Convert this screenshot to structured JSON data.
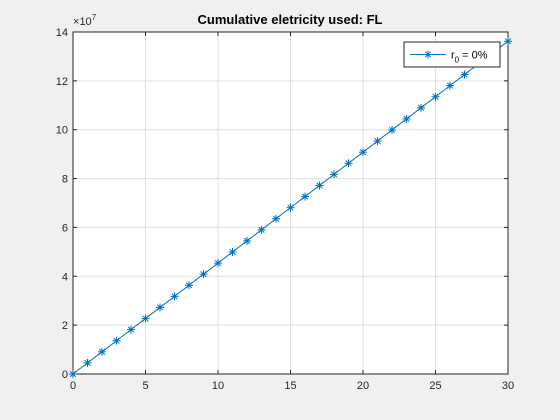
{
  "chart_data": {
    "type": "line",
    "title": "Cumulative eletricity used: FL",
    "xlabel": "",
    "ylabel": "",
    "xlim": [
      0,
      30
    ],
    "ylim": [
      0,
      140000000
    ],
    "x_ticks": [
      0,
      5,
      10,
      15,
      20,
      25,
      30
    ],
    "y_ticks": [
      0,
      20000000,
      40000000,
      60000000,
      80000000,
      100000000,
      120000000,
      140000000
    ],
    "x_tick_labels": [
      "0",
      "5",
      "10",
      "15",
      "20",
      "25",
      "30"
    ],
    "y_tick_labels": [
      "0",
      "2",
      "4",
      "6",
      "8",
      "10",
      "12",
      "14"
    ],
    "y_exponent": {
      "base": "10",
      "power": "7"
    },
    "grid": true,
    "legend_position": "top-right",
    "series": [
      {
        "legend": {
          "prefix": "r",
          "subscript": "0",
          "suffix": " = 0%"
        },
        "color": "#0072bd",
        "marker": "asterisk",
        "x": [
          0,
          1,
          2,
          3,
          4,
          5,
          6,
          7,
          8,
          9,
          10,
          11,
          12,
          13,
          14,
          15,
          16,
          17,
          18,
          19,
          20,
          21,
          22,
          23,
          24,
          25,
          26,
          27,
          28,
          29,
          30
        ],
        "values": [
          0,
          4540000,
          9080000,
          13620000,
          18160000,
          22700000,
          27240000,
          31780000,
          36320000,
          40860000,
          45400000,
          49940000,
          54480000,
          59020000,
          63560000,
          68100000,
          72640000,
          77180000,
          81720000,
          86260000,
          90800000,
          95340000,
          99880000,
          104420000,
          108960000,
          113500000,
          118040000,
          122580000,
          127120000,
          131660000,
          136200000
        ]
      }
    ]
  }
}
